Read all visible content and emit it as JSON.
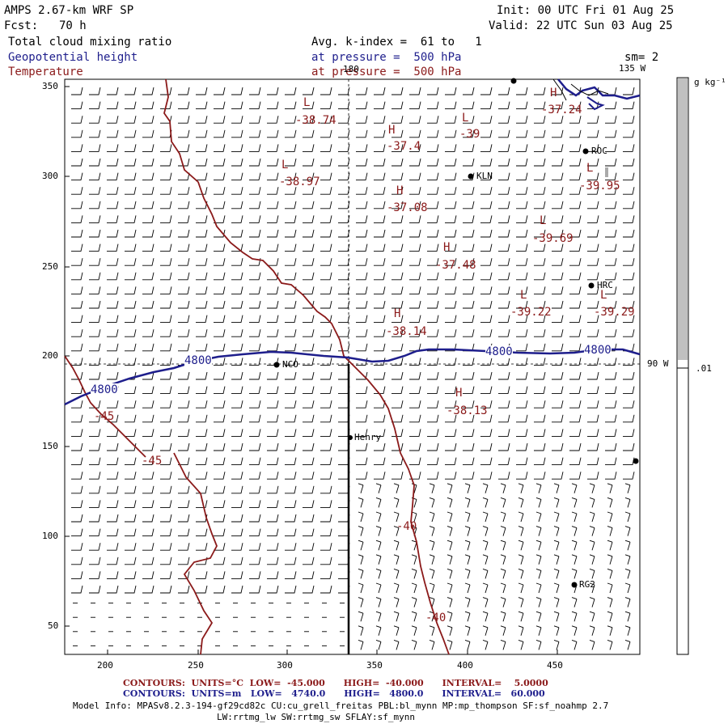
{
  "header": {
    "model": "AMPS 2.67-km WRF SP",
    "fcst_label": "Fcst:",
    "fcst_value": "70 h",
    "init": "Init: 00 UTC Fri 01 Aug 25",
    "valid": "Valid: 22 UTC Sun 03 Aug 25",
    "field1": "Total cloud mixing ratio",
    "field2": "Geopotential height",
    "field3": "Temperature",
    "avg": "Avg. k-index =  61 to   1",
    "pres1": "at pressure =  500 hPa",
    "pres2": "at pressure =  500 hPa",
    "smooth": "sm= 2",
    "lon_top_180": "180",
    "lon_top_135": "135 W",
    "lon_right_90": "90 W"
  },
  "colorbar": {
    "units": "g kg⁻¹",
    "tick": ".01",
    "fill_fraction_top": 0.49,
    "fill_color": "#c0c0c0"
  },
  "axes": {
    "x_ticks": [
      "200",
      "250",
      "300",
      "350",
      "400",
      "450"
    ],
    "y_ticks": [
      "350",
      "300",
      "250",
      "200",
      "150",
      "100",
      "50"
    ]
  },
  "stations": [
    {
      "id": "st-roc",
      "label": "ROC"
    },
    {
      "id": "st-kln",
      "label": "KLN"
    },
    {
      "id": "st-hrc",
      "label": "HRC"
    },
    {
      "id": "st-nco",
      "label": "NCO"
    },
    {
      "id": "st-henry",
      "label": "Henry"
    },
    {
      "id": "st-rg2",
      "label": "RG2"
    }
  ],
  "contour_labels": {
    "h4800_a": "4800",
    "h4800_b": "4800",
    "h4800_c": "4800",
    "h4800_d": "4800",
    "t45_a": "-45",
    "t45_b": "-45",
    "t40_a": "-40",
    "t40_b": "-40"
  },
  "extrema": [
    {
      "type": "L",
      "value": "-38.74"
    },
    {
      "type": "H",
      "value": "-37.4"
    },
    {
      "type": "L",
      "value": "-39"
    },
    {
      "type": "H",
      "value": "-37.24"
    },
    {
      "type": "L",
      "value": "-38.97"
    },
    {
      "type": "H",
      "value": "-37.08"
    },
    {
      "type": "L",
      "value": "-39.95"
    },
    {
      "type": "L",
      "value": "-39.69"
    },
    {
      "type": "H",
      "value": "-37.48"
    },
    {
      "type": "L",
      "value": "-39.22"
    },
    {
      "type": "L",
      "value": "-39.29"
    },
    {
      "type": "H",
      "value": "-38.14"
    },
    {
      "type": "H",
      "value": "-38.13"
    }
  ],
  "footer": {
    "temp_contours": "CONTOURS:  UNITS=°C  LOW=  -45.000      HIGH=  -40.000      INTERVAL=    5.0000",
    "hgt_contours": "CONTOURS:  UNITS=m   LOW=   4740.0      HIGH=   4800.0      INTERVAL=   60.000",
    "model_info": "Model Info: MPASv8.2.3-194-gf29cd82c CU:cu_grell_freitas PBL:bl_mynn MP:mp_thompson SF:sf_noahmp 2.7",
    "model_info2": "LW:rrtmg_lw SW:rrtmg_sw SFLAY:sf_mynn"
  }
}
